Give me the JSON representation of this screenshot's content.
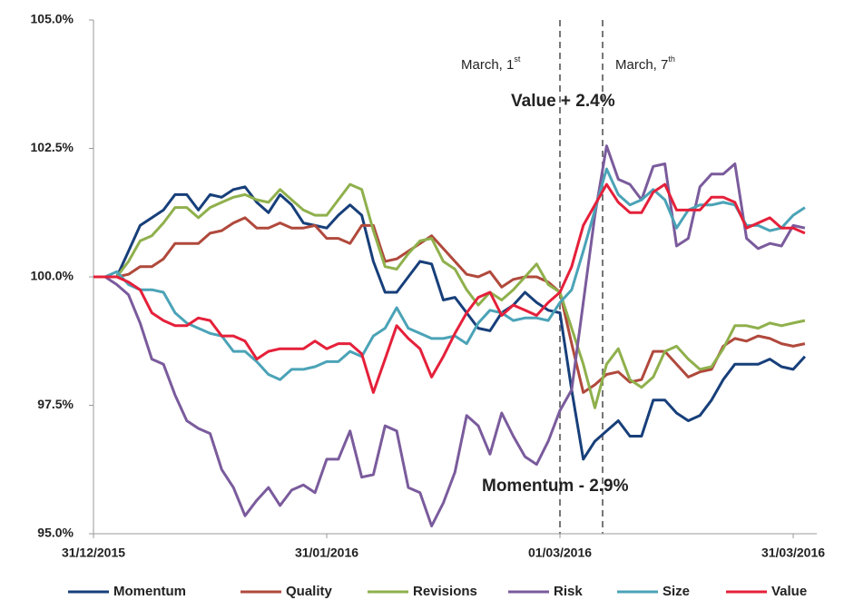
{
  "chart_data": {
    "type": "line",
    "categories": [
      "31/12/2015",
      null,
      null,
      null,
      null,
      null,
      null,
      null,
      null,
      null,
      null,
      null,
      null,
      null,
      null,
      null,
      null,
      null,
      null,
      null,
      "31/01/2016",
      null,
      null,
      null,
      null,
      null,
      null,
      null,
      null,
      null,
      null,
      null,
      null,
      null,
      null,
      null,
      null,
      null,
      null,
      null,
      "01/03/2016",
      null,
      null,
      null,
      null,
      null,
      null,
      null,
      null,
      null,
      null,
      null,
      null,
      null,
      null,
      null,
      null,
      null,
      null,
      null,
      "31/03/2016",
      null
    ],
    "ylim": [
      95,
      105
    ],
    "yticks": [
      {
        "value": 95,
        "label": "95.0%"
      },
      {
        "value": 97.5,
        "label": "97.5%"
      },
      {
        "value": 100,
        "label": "100.0%"
      },
      {
        "value": 102.5,
        "label": "102.5%"
      },
      {
        "value": 105,
        "label": "105.0%"
      }
    ],
    "series": [
      {
        "name": "Momentum",
        "color": "#173f7a",
        "values": [
          100,
          100,
          100,
          100.5,
          101.0,
          101.15,
          101.3,
          101.6,
          101.6,
          101.3,
          101.6,
          101.55,
          101.7,
          101.75,
          101.45,
          101.25,
          101.6,
          101.4,
          101.05,
          101.0,
          100.95,
          101.2,
          101.4,
          101.2,
          100.3,
          99.7,
          99.7,
          100.0,
          100.3,
          100.25,
          99.55,
          99.6,
          99.3,
          99.0,
          98.95,
          99.3,
          99.45,
          99.7,
          99.5,
          99.35,
          99.3,
          97.8,
          96.45,
          96.8,
          97.0,
          97.2,
          96.9,
          96.9,
          97.6,
          97.6,
          97.35,
          97.2,
          97.3,
          97.6,
          98.0,
          98.3,
          98.3,
          98.3,
          98.4,
          98.25,
          98.2,
          98.45
        ]
      },
      {
        "name": "Quality",
        "color": "#b0493c",
        "values": [
          100,
          100,
          100,
          100.05,
          100.2,
          100.2,
          100.35,
          100.65,
          100.65,
          100.65,
          100.85,
          100.9,
          101.05,
          101.15,
          100.95,
          100.95,
          101.05,
          100.95,
          100.95,
          101.0,
          100.75,
          100.75,
          100.65,
          101.0,
          101.0,
          100.3,
          100.35,
          100.5,
          100.65,
          100.8,
          100.55,
          100.3,
          100.05,
          100.0,
          100.1,
          99.8,
          99.95,
          100.0,
          100.0,
          99.9,
          99.7,
          98.7,
          97.75,
          97.9,
          98.1,
          98.15,
          97.95,
          98.0,
          98.55,
          98.55,
          98.3,
          98.05,
          98.15,
          98.2,
          98.65,
          98.8,
          98.75,
          98.85,
          98.8,
          98.7,
          98.65,
          98.7
        ]
      },
      {
        "name": "Revisions",
        "color": "#8fb04c",
        "values": [
          100,
          100,
          100,
          100.3,
          100.7,
          100.8,
          101.05,
          101.35,
          101.35,
          101.15,
          101.35,
          101.45,
          101.55,
          101.6,
          101.5,
          101.45,
          101.7,
          101.5,
          101.3,
          101.2,
          101.2,
          101.5,
          101.8,
          101.7,
          100.9,
          100.2,
          100.15,
          100.45,
          100.7,
          100.75,
          100.3,
          100.15,
          99.75,
          99.45,
          99.7,
          99.55,
          99.75,
          100.0,
          100.25,
          99.85,
          99.7,
          99.0,
          98.3,
          97.45,
          98.3,
          98.6,
          98.0,
          97.85,
          98.05,
          98.55,
          98.65,
          98.4,
          98.2,
          98.25,
          98.6,
          99.05,
          99.05,
          99.0,
          99.1,
          99.05,
          99.1,
          99.15
        ]
      },
      {
        "name": "Risk",
        "color": "#7a5b9c",
        "values": [
          100,
          100,
          99.85,
          99.65,
          99.1,
          98.4,
          98.3,
          97.7,
          97.2,
          97.05,
          96.95,
          96.25,
          95.9,
          95.35,
          95.65,
          95.9,
          95.55,
          95.85,
          95.95,
          95.8,
          96.45,
          96.45,
          97.0,
          96.1,
          96.15,
          97.1,
          97.0,
          95.9,
          95.8,
          95.15,
          95.6,
          96.2,
          97.3,
          97.1,
          96.55,
          97.35,
          96.9,
          96.5,
          96.35,
          96.8,
          97.4,
          97.8,
          99.5,
          101.2,
          102.55,
          101.9,
          101.8,
          101.5,
          102.15,
          102.2,
          100.6,
          100.75,
          101.75,
          102.0,
          102.0,
          102.2,
          100.75,
          100.55,
          100.65,
          100.6,
          101.0,
          100.95
        ]
      },
      {
        "name": "Size",
        "color": "#4ba3b7",
        "values": [
          100,
          100,
          100.1,
          99.85,
          99.75,
          99.75,
          99.7,
          99.3,
          99.1,
          99.0,
          98.9,
          98.85,
          98.55,
          98.55,
          98.35,
          98.1,
          98.0,
          98.2,
          98.2,
          98.25,
          98.35,
          98.35,
          98.55,
          98.45,
          98.85,
          99.0,
          99.4,
          99.0,
          98.9,
          98.8,
          98.8,
          98.85,
          98.7,
          99.1,
          99.35,
          99.3,
          99.15,
          99.2,
          99.2,
          99.15,
          99.5,
          99.75,
          100.5,
          101.3,
          102.1,
          101.6,
          101.4,
          101.5,
          101.7,
          101.5,
          100.95,
          101.3,
          101.4,
          101.4,
          101.45,
          101.4,
          101.0,
          101.0,
          100.9,
          100.95,
          101.2,
          101.35
        ]
      },
      {
        "name": "Value",
        "color": "#e5203a",
        "values": [
          100,
          100,
          100,
          99.9,
          99.75,
          99.3,
          99.15,
          99.05,
          99.05,
          99.2,
          99.15,
          98.85,
          98.85,
          98.75,
          98.4,
          98.55,
          98.6,
          98.6,
          98.6,
          98.75,
          98.6,
          98.7,
          98.7,
          98.5,
          97.75,
          98.4,
          99.05,
          98.8,
          98.6,
          98.05,
          98.45,
          98.9,
          99.3,
          99.6,
          99.7,
          99.25,
          99.45,
          99.35,
          99.25,
          99.5,
          99.7,
          100.2,
          101.0,
          101.4,
          101.8,
          101.45,
          101.25,
          101.25,
          101.65,
          101.8,
          101.3,
          101.3,
          101.3,
          101.55,
          101.55,
          101.45,
          100.95,
          101.05,
          101.15,
          100.95,
          100.95,
          100.85
        ]
      }
    ],
    "annotations": [
      {
        "text": "March, 1",
        "sup": "st"
      },
      {
        "text": "March, 7",
        "sup": "th"
      },
      {
        "text": "Value + 2.4%"
      },
      {
        "text": "Momentum - 2.9%"
      }
    ],
    "legend": "bottom"
  }
}
